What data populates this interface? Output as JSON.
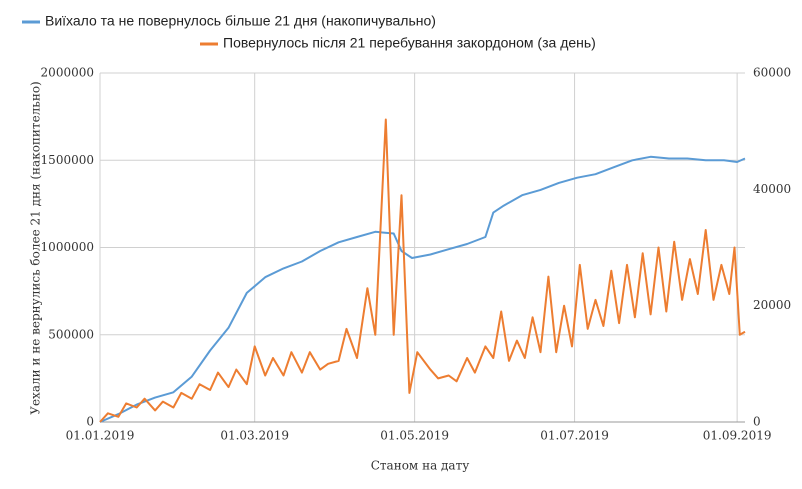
{
  "chart_data": {
    "type": "line",
    "x_label": "Станом на дату",
    "y_label": "Уехали и не вернулись более 21 дня (накопительно)",
    "xlim": [
      "01.01.2019",
      "04.09.2019"
    ],
    "xticks": [
      "01.01.2019",
      "01.03.2019",
      "01.05.2019",
      "01.07.2019",
      "01.09.2019"
    ],
    "ylim": [
      0,
      2000000
    ],
    "yticks": [
      0,
      500000,
      1000000,
      1500000,
      2000000
    ],
    "y2lim": [
      0,
      60000
    ],
    "y2ticks": [
      0,
      20000,
      40000,
      60000
    ],
    "grid": true,
    "series": [
      {
        "name": "Виїхало та не повернулось більше 21 дня (накопичувально)",
        "color": "#5b9bd5",
        "x": [
          "01.01.2019",
          "08.01.2019",
          "15.01.2019",
          "22.01.2019",
          "29.01.2019",
          "05.02.2019",
          "12.02.2019",
          "19.02.2019",
          "26.02.2019",
          "05.03.2019",
          "12.03.2019",
          "19.03.2019",
          "26.03.2019",
          "02.04.2019",
          "09.04.2019",
          "16.04.2019",
          "23.04.2019",
          "26.04.2019",
          "30.04.2019",
          "07.05.2019",
          "14.05.2019",
          "21.05.2019",
          "28.05.2019",
          "31.05.2019",
          "04.06.2019",
          "11.06.2019",
          "18.06.2019",
          "25.06.2019",
          "02.07.2019",
          "09.07.2019",
          "16.07.2019",
          "23.07.2019",
          "30.07.2019",
          "06.08.2019",
          "13.08.2019",
          "20.08.2019",
          "27.08.2019",
          "01.09.2019",
          "04.09.2019"
        ],
        "values": [
          0,
          45000,
          100000,
          140000,
          170000,
          260000,
          410000,
          540000,
          740000,
          830000,
          880000,
          920000,
          980000,
          1030000,
          1060000,
          1090000,
          1080000,
          980000,
          940000,
          960000,
          990000,
          1020000,
          1060000,
          1200000,
          1240000,
          1300000,
          1330000,
          1370000,
          1400000,
          1420000,
          1460000,
          1500000,
          1520000,
          1510000,
          1510000,
          1500000,
          1500000,
          1490000,
          1510000
        ]
      },
      {
        "name": "Повернулось після 21 перебування закордоном (за день)",
        "color": "#ed7d31",
        "axis": "y2",
        "x": [
          "01.01.2019",
          "04.01.2019",
          "08.01.2019",
          "11.01.2019",
          "15.01.2019",
          "18.01.2019",
          "22.01.2019",
          "25.01.2019",
          "29.01.2019",
          "01.02.2019",
          "05.02.2019",
          "08.02.2019",
          "12.02.2019",
          "15.02.2019",
          "19.02.2019",
          "22.02.2019",
          "26.02.2019",
          "01.03.2019",
          "05.03.2019",
          "08.03.2019",
          "12.03.2019",
          "15.03.2019",
          "19.03.2019",
          "22.03.2019",
          "26.03.2019",
          "29.03.2019",
          "02.04.2019",
          "05.04.2019",
          "09.04.2019",
          "13.04.2019",
          "16.04.2019",
          "20.04.2019",
          "23.04.2019",
          "26.04.2019",
          "29.04.2019",
          "02.05.2019",
          "07.05.2019",
          "10.05.2019",
          "14.05.2019",
          "17.05.2019",
          "21.05.2019",
          "24.05.2019",
          "28.05.2019",
          "31.05.2019",
          "03.06.2019",
          "06.06.2019",
          "09.06.2019",
          "12.06.2019",
          "15.06.2019",
          "18.06.2019",
          "21.06.2019",
          "24.06.2019",
          "27.06.2019",
          "30.06.2019",
          "03.07.2019",
          "06.07.2019",
          "09.07.2019",
          "12.07.2019",
          "15.07.2019",
          "18.07.2019",
          "21.07.2019",
          "24.07.2019",
          "27.07.2019",
          "30.07.2019",
          "02.08.2019",
          "05.08.2019",
          "08.08.2019",
          "11.08.2019",
          "14.08.2019",
          "17.08.2019",
          "20.08.2019",
          "23.08.2019",
          "26.08.2019",
          "29.08.2019",
          "31.08.2019",
          "02.09.2019",
          "04.09.2019"
        ],
        "values": [
          0,
          1500,
          900,
          3200,
          2500,
          4000,
          2000,
          3500,
          2500,
          5000,
          4000,
          6500,
          5500,
          8500,
          6000,
          9000,
          6500,
          13000,
          8000,
          11000,
          8000,
          12000,
          8500,
          12000,
          9000,
          10000,
          10500,
          16000,
          11000,
          23000,
          15000,
          52000,
          15000,
          39000,
          5000,
          12000,
          9000,
          7500,
          8000,
          7000,
          11000,
          8500,
          13000,
          11000,
          19000,
          10500,
          14000,
          11000,
          18000,
          12000,
          25000,
          12000,
          20000,
          13000,
          27000,
          16000,
          21000,
          16500,
          26000,
          17000,
          27000,
          18000,
          29000,
          18500,
          30000,
          19000,
          31000,
          21000,
          28000,
          22000,
          33000,
          21000,
          27000,
          22000,
          30000,
          15000,
          15500
        ]
      }
    ]
  }
}
